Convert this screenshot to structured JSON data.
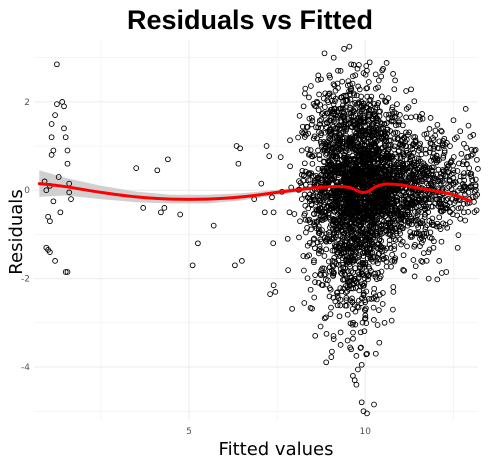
{
  "chart_data": {
    "type": "scatter",
    "title": "Residuals vs Fitted",
    "xlabel": "Fitted values",
    "ylabel": "Residuals",
    "xlim": [
      0.6,
      13.2
    ],
    "ylim": [
      -5.2,
      3.4
    ],
    "x_ticks": [
      5,
      10
    ],
    "y_ticks": [
      -4,
      -2,
      0,
      2
    ],
    "grid": true,
    "colors": {
      "points": "#000000",
      "smooth": "#ff0000",
      "ribbon": "#c8c8c8",
      "grid": "#ebebeb"
    },
    "sparse_points": [
      [
        0.9,
        0.2
      ],
      [
        0.95,
        0.0
      ],
      [
        1.0,
        -0.6
      ],
      [
        1.05,
        -0.7
      ],
      [
        0.95,
        -1.3
      ],
      [
        1.0,
        -1.35
      ],
      [
        1.05,
        -1.4
      ],
      [
        1.1,
        0.8
      ],
      [
        1.1,
        1.2
      ],
      [
        1.1,
        1.5
      ],
      [
        1.15,
        0.9
      ],
      [
        1.2,
        1.7
      ],
      [
        1.25,
        2.85
      ],
      [
        1.25,
        1.95
      ],
      [
        1.4,
        2.0
      ],
      [
        1.45,
        1.9
      ],
      [
        1.45,
        1.4
      ],
      [
        1.5,
        1.2
      ],
      [
        1.55,
        0.9
      ],
      [
        1.55,
        0.6
      ],
      [
        1.6,
        0.15
      ],
      [
        1.6,
        -0.05
      ],
      [
        1.65,
        -0.2
      ],
      [
        1.2,
        -1.6
      ],
      [
        1.5,
        -1.85
      ],
      [
        1.55,
        -1.85
      ],
      [
        1.3,
        0.3
      ],
      [
        1.35,
        -0.5
      ],
      [
        1.05,
        0.1
      ],
      [
        1.15,
        -0.25
      ],
      [
        3.5,
        0.5
      ],
      [
        3.7,
        -0.4
      ],
      [
        4.1,
        0.45
      ],
      [
        4.4,
        0.7
      ],
      [
        4.2,
        -0.5
      ],
      [
        4.3,
        -0.4
      ],
      [
        4.75,
        -0.55
      ],
      [
        5.1,
        -1.7
      ],
      [
        5.25,
        -1.2
      ],
      [
        5.7,
        -0.8
      ],
      [
        6.35,
        1.0
      ],
      [
        6.4,
        0.6
      ],
      [
        6.45,
        0.95
      ],
      [
        6.3,
        -1.7
      ],
      [
        6.5,
        -1.6
      ],
      [
        6.85,
        -0.2
      ],
      [
        7.05,
        0.15
      ],
      [
        7.2,
        1.0
      ],
      [
        7.15,
        -0.5
      ],
      [
        7.4,
        -0.5
      ],
      [
        7.3,
        -2.35
      ],
      [
        7.45,
        -2.3
      ],
      [
        7.4,
        -2.15
      ],
      [
        7.6,
        0.75
      ],
      [
        7.85,
        -0.5
      ],
      [
        7.8,
        -1.1
      ],
      [
        8.2,
        0.35
      ],
      [
        8.15,
        -0.7
      ],
      [
        8.2,
        0.9
      ],
      [
        8.25,
        1.9
      ],
      [
        8.3,
        2.3
      ],
      [
        8.4,
        2.1
      ],
      [
        8.35,
        -0.85
      ],
      [
        8.35,
        -1.5
      ],
      [
        8.45,
        -2.25
      ],
      [
        8.3,
        -0.35
      ],
      [
        8.2,
        -0.2
      ],
      [
        9.4,
        3.2
      ],
      [
        9.55,
        3.25
      ],
      [
        9.3,
        2.7
      ],
      [
        9.0,
        2.55
      ],
      [
        9.1,
        2.4
      ],
      [
        9.6,
        2.85
      ],
      [
        9.95,
        2.65
      ],
      [
        9.8,
        2.35
      ],
      [
        10.3,
        2.3
      ],
      [
        10.1,
        2.45
      ],
      [
        10.6,
        2.0
      ],
      [
        10.9,
        1.95
      ],
      [
        11.3,
        1.65
      ],
      [
        11.55,
        1.6
      ],
      [
        12.15,
        1.35
      ],
      [
        12.6,
        1.2
      ],
      [
        12.8,
        1.05
      ],
      [
        12.95,
        0.5
      ],
      [
        13.0,
        0.1
      ],
      [
        13.05,
        -0.15
      ],
      [
        12.9,
        -0.3
      ],
      [
        12.3,
        -1.85
      ],
      [
        12.1,
        -1.6
      ],
      [
        11.8,
        -2.0
      ],
      [
        11.4,
        -1.95
      ],
      [
        10.8,
        -2.3
      ],
      [
        10.35,
        -3.05
      ],
      [
        10.4,
        -3.45
      ],
      [
        10.05,
        -3.7
      ],
      [
        9.9,
        -3.95
      ],
      [
        9.75,
        -3.75
      ],
      [
        9.6,
        -3.6
      ],
      [
        9.5,
        -3.4
      ],
      [
        9.3,
        -3.5
      ],
      [
        9.1,
        -3.3
      ],
      [
        8.9,
        -3.25
      ],
      [
        8.85,
        -2.9
      ],
      [
        9.65,
        -4.2
      ],
      [
        9.7,
        -4.3
      ],
      [
        9.75,
        -4.4
      ],
      [
        9.9,
        -4.8
      ],
      [
        9.95,
        -5.0
      ],
      [
        10.05,
        -5.05
      ],
      [
        10.25,
        -4.85
      ],
      [
        10.3,
        -3.7
      ],
      [
        10.55,
        -3.0
      ],
      [
        10.75,
        -2.95
      ]
    ],
    "clusters": [
      {
        "center": [
          9.9,
          0.3
        ],
        "spread": [
          0.65,
          1.0
        ],
        "count": 1400
      },
      {
        "center": [
          10.2,
          0.0
        ],
        "spread": [
          0.95,
          0.65
        ],
        "count": 650
      },
      {
        "center": [
          9.4,
          -0.6
        ],
        "spread": [
          0.55,
          1.2
        ],
        "count": 380
      },
      {
        "center": [
          11.3,
          0.0
        ],
        "spread": [
          0.85,
          0.65
        ],
        "count": 450
      },
      {
        "center": [
          12.3,
          0.1
        ],
        "spread": [
          0.55,
          0.5
        ],
        "count": 150
      },
      {
        "center": [
          9.7,
          -2.0
        ],
        "spread": [
          0.45,
          0.6
        ],
        "count": 150
      },
      {
        "center": [
          9.2,
          1.6
        ],
        "spread": [
          0.4,
          0.5
        ],
        "count": 120
      }
    ],
    "smooth_line": {
      "x": [
        0.75,
        1.5,
        2.5,
        3.5,
        4.5,
        5.5,
        6.5,
        7.5,
        8.5,
        9.0,
        9.4,
        9.6,
        9.9,
        10.1,
        10.3,
        10.6,
        11.0,
        11.5,
        12.0,
        12.5,
        13.0
      ],
      "y": [
        0.15,
        0.08,
        -0.05,
        -0.15,
        -0.2,
        -0.2,
        -0.15,
        -0.05,
        0.05,
        0.08,
        0.08,
        0.05,
        -0.05,
        -0.02,
        0.08,
        0.14,
        0.12,
        0.05,
        -0.02,
        -0.1,
        -0.25
      ],
      "band_halfwidth": [
        0.3,
        0.2,
        0.15,
        0.12,
        0.1,
        0.1,
        0.08,
        0.06,
        0.04,
        0.03,
        0.03,
        0.03,
        0.03,
        0.03,
        0.03,
        0.03,
        0.03,
        0.04,
        0.05,
        0.07,
        0.1
      ]
    }
  }
}
